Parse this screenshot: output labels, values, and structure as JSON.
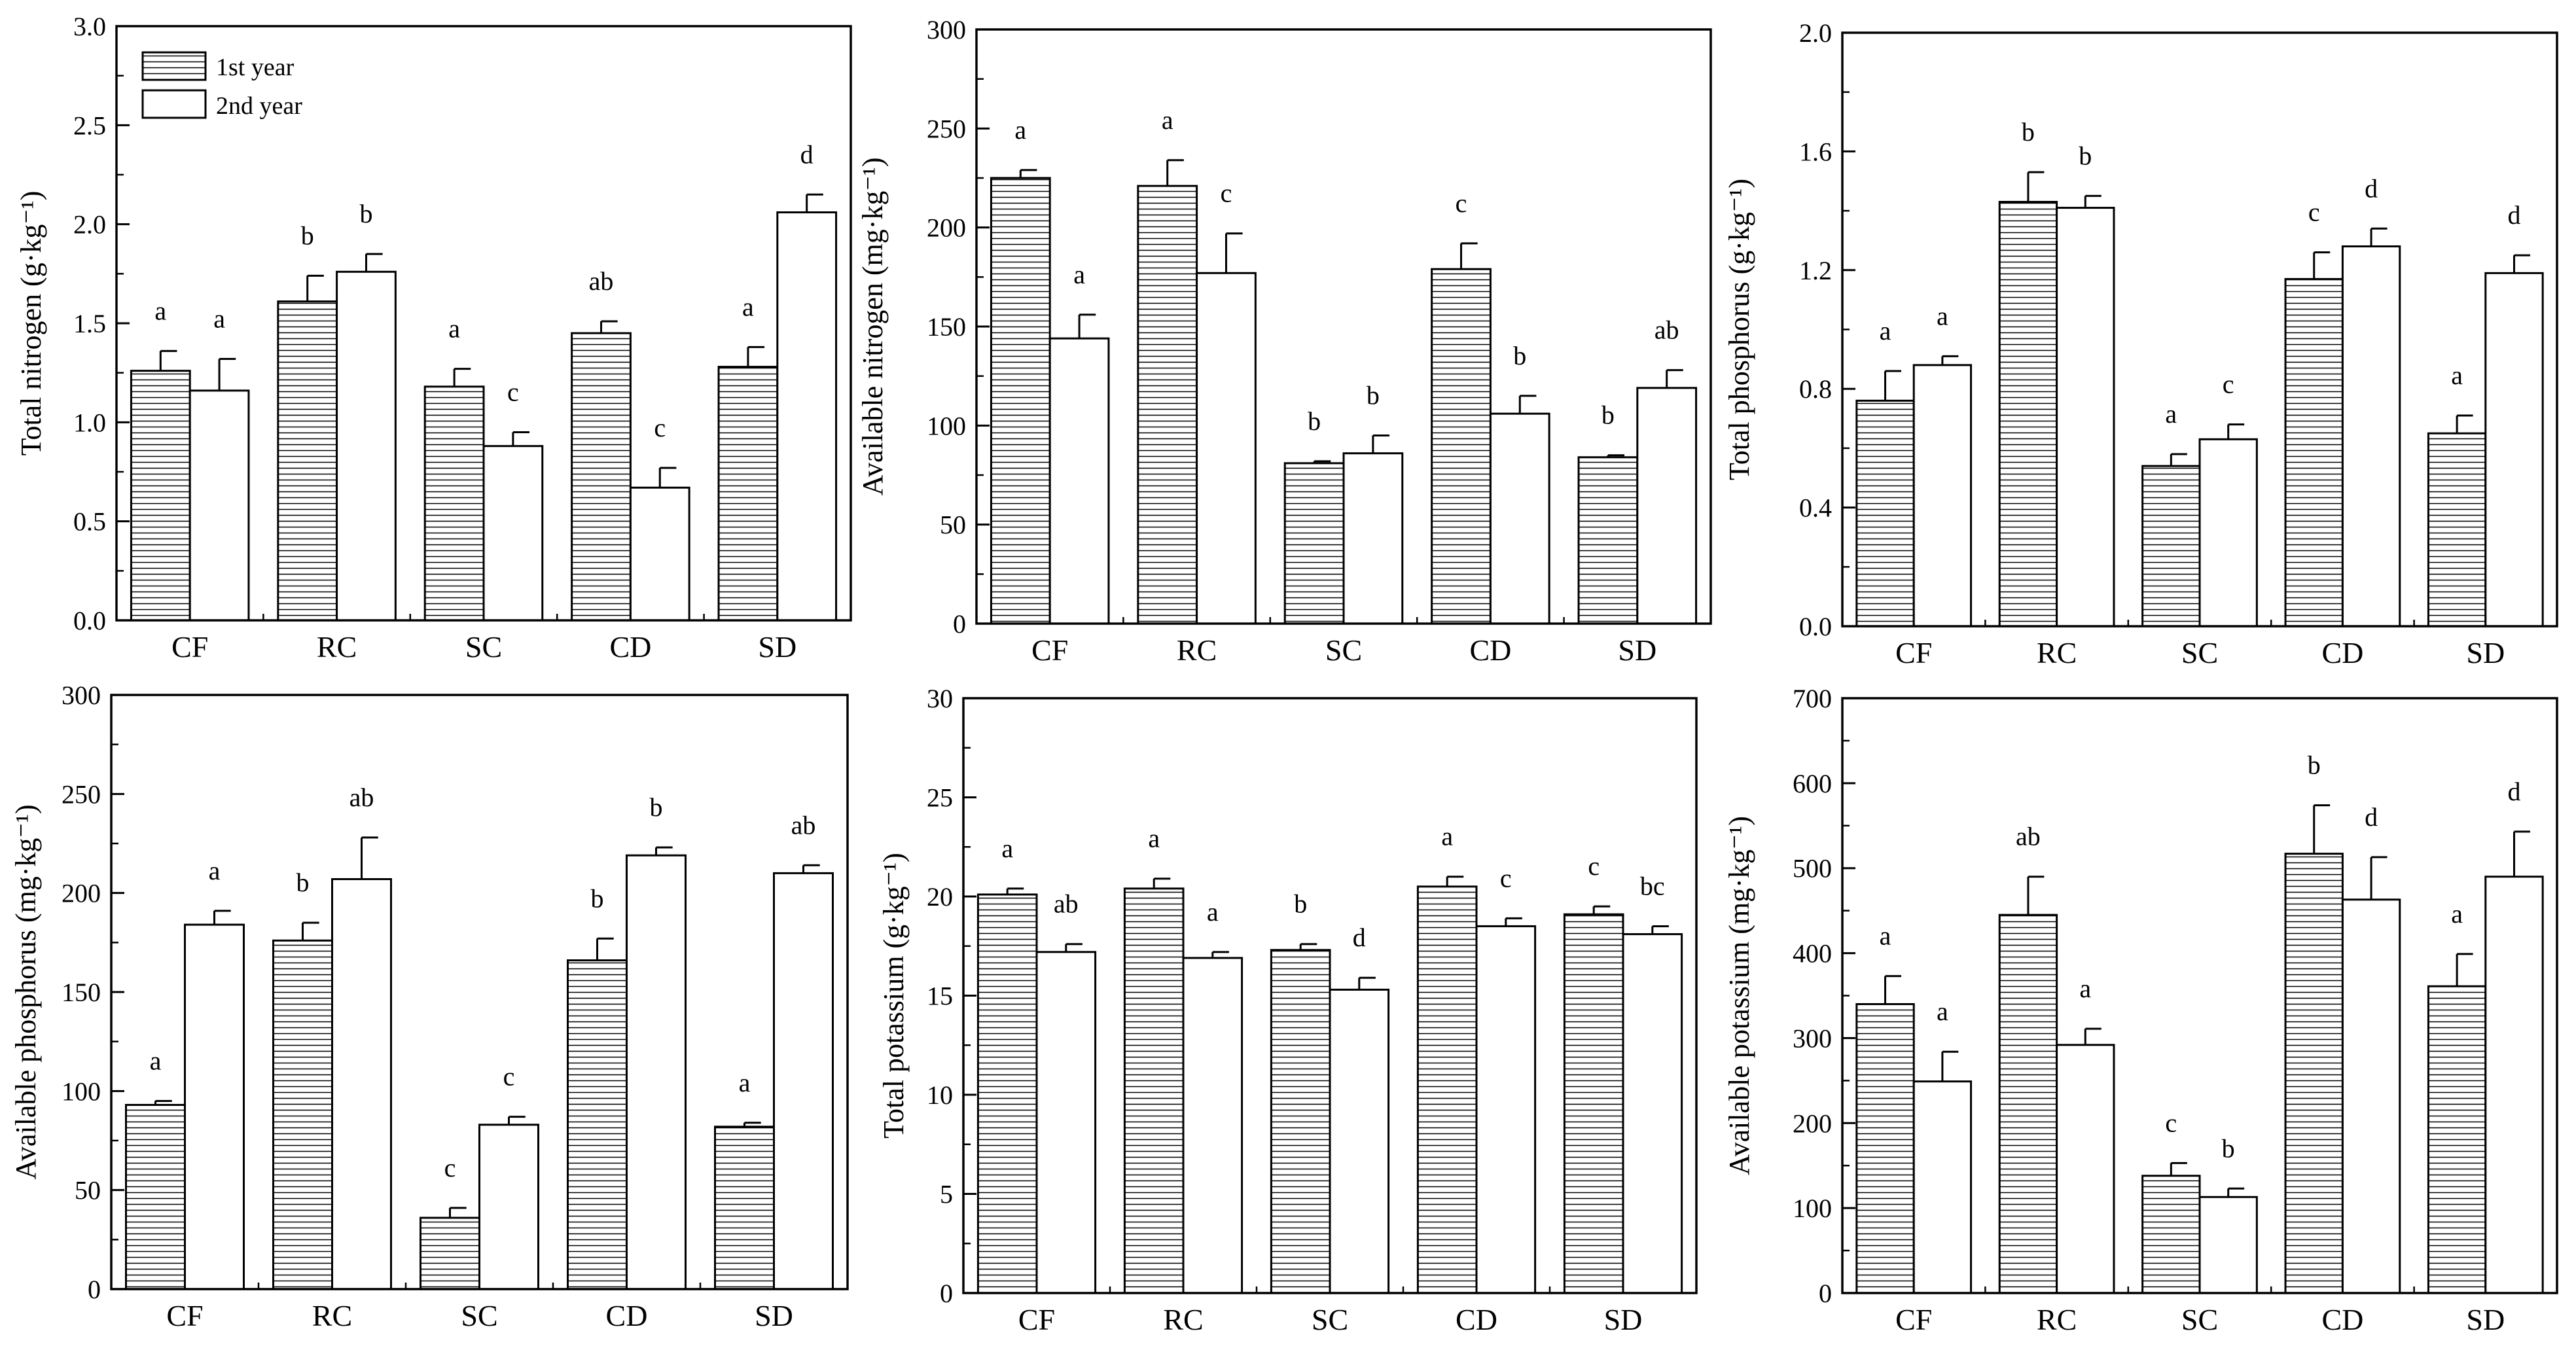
{
  "legend": {
    "series1": "1st year",
    "series2": "2nd year"
  },
  "chart_data": [
    {
      "type": "bar",
      "title": "",
      "ylabel": "Total nitrogen  (g·kg⁻¹)",
      "ylim": [
        0,
        3.0
      ],
      "ytick_labels": [
        "0.0",
        "0.5",
        "1.0",
        "1.5",
        "2.0",
        "2.5",
        "3.0"
      ],
      "categories": [
        "CF",
        "RC",
        "SC",
        "CD",
        "SD"
      ],
      "series": [
        {
          "name": "1st year",
          "values": [
            1.26,
            1.61,
            1.18,
            1.45,
            1.28
          ],
          "errors": [
            0.1,
            0.13,
            0.09,
            0.06,
            0.1
          ],
          "labels": [
            "a",
            "b",
            "a",
            "ab",
            "a"
          ]
        },
        {
          "name": "2nd year",
          "values": [
            1.16,
            1.76,
            0.88,
            0.67,
            2.06
          ],
          "errors": [
            0.16,
            0.09,
            0.07,
            0.1,
            0.09
          ],
          "labels": [
            "a",
            "b",
            "c",
            "c",
            "d"
          ]
        }
      ]
    },
    {
      "type": "bar",
      "title": "",
      "ylabel": "Available nitrogen (mg·kg⁻¹)",
      "ylim": [
        0,
        300
      ],
      "ytick_labels": [
        "0",
        "50",
        "100",
        "150",
        "200",
        "250",
        "300"
      ],
      "categories": [
        "CF",
        "RC",
        "SC",
        "CD",
        "SD"
      ],
      "series": [
        {
          "name": "1st year",
          "values": [
            225,
            221,
            81,
            179,
            84
          ],
          "errors": [
            4,
            13,
            1,
            13,
            1
          ],
          "labels": [
            "a",
            "a",
            "b",
            "c",
            "b"
          ]
        },
        {
          "name": "2nd year",
          "values": [
            144,
            177,
            86,
            106,
            119
          ],
          "errors": [
            12,
            20,
            9,
            9,
            9
          ],
          "labels": [
            "a",
            "c",
            "b",
            "b",
            "ab"
          ]
        }
      ]
    },
    {
      "type": "bar",
      "title": "",
      "ylabel": "Total phosphorus (g·kg⁻¹)",
      "ylim": [
        0,
        2.0
      ],
      "ytick_labels": [
        "0.0",
        "0.4",
        "0.8",
        "1.2",
        "1.6",
        "2.0"
      ],
      "categories": [
        "CF",
        "RC",
        "SC",
        "CD",
        "SD"
      ],
      "series": [
        {
          "name": "1st year",
          "values": [
            0.76,
            1.43,
            0.54,
            1.17,
            0.65
          ],
          "errors": [
            0.1,
            0.1,
            0.04,
            0.09,
            0.06
          ],
          "labels": [
            "a",
            "b",
            "a",
            "c",
            "a"
          ]
        },
        {
          "name": "2nd year",
          "values": [
            0.88,
            1.41,
            0.63,
            1.28,
            1.19
          ],
          "errors": [
            0.03,
            0.04,
            0.05,
            0.06,
            0.06
          ],
          "labels": [
            "a",
            "b",
            "c",
            "d",
            "d"
          ]
        }
      ]
    },
    {
      "type": "bar",
      "title": "",
      "ylabel": "Available phosphorus (mg·kg⁻¹)",
      "ylim": [
        0,
        300
      ],
      "ytick_labels": [
        "0",
        "50",
        "100",
        "150",
        "200",
        "250",
        "300"
      ],
      "categories": [
        "CF",
        "RC",
        "SC",
        "CD",
        "SD"
      ],
      "series": [
        {
          "name": "1st year",
          "values": [
            93,
            176,
            36,
            166,
            82
          ],
          "errors": [
            2,
            9,
            5,
            11,
            2
          ],
          "labels": [
            "a",
            "b",
            "c",
            "b",
            "a"
          ]
        },
        {
          "name": "2nd year",
          "values": [
            184,
            207,
            83,
            219,
            210
          ],
          "errors": [
            7,
            21,
            4,
            4,
            4
          ],
          "labels": [
            "a",
            "ab",
            "c",
            "b",
            "ab"
          ]
        }
      ]
    },
    {
      "type": "bar",
      "title": "",
      "ylabel": "Total potassium  (g·kg⁻¹)",
      "ylim": [
        0,
        30
      ],
      "ytick_labels": [
        "0",
        "5",
        "10",
        "15",
        "20",
        "25",
        "30"
      ],
      "categories": [
        "CF",
        "RC",
        "SC",
        "CD",
        "SD"
      ],
      "series": [
        {
          "name": "1st year",
          "values": [
            20.1,
            20.4,
            17.3,
            20.5,
            19.1
          ],
          "errors": [
            0.3,
            0.5,
            0.3,
            0.5,
            0.4
          ],
          "labels": [
            "a",
            "a",
            "b",
            "a",
            "c"
          ]
        },
        {
          "name": "2nd year",
          "values": [
            17.2,
            16.9,
            15.3,
            18.5,
            18.1
          ],
          "errors": [
            0.4,
            0.3,
            0.6,
            0.4,
            0.4
          ],
          "labels": [
            "ab",
            "a",
            "d",
            "c",
            "bc"
          ]
        }
      ]
    },
    {
      "type": "bar",
      "title": "",
      "ylabel": "Available potassium (mg·kg⁻¹)",
      "ylim": [
        0,
        700
      ],
      "ytick_labels": [
        "0",
        "100",
        "200",
        "300",
        "400",
        "500",
        "600",
        "700"
      ],
      "categories": [
        "CF",
        "RC",
        "SC",
        "CD",
        "SD"
      ],
      "series": [
        {
          "name": "1st year",
          "values": [
            340,
            445,
            138,
            517,
            361
          ],
          "errors": [
            33,
            45,
            15,
            57,
            38
          ],
          "labels": [
            "a",
            "ab",
            "c",
            "b",
            "a"
          ]
        },
        {
          "name": "2nd year",
          "values": [
            249,
            292,
            113,
            463,
            490
          ],
          "errors": [
            35,
            19,
            10,
            50,
            53
          ],
          "labels": [
            "a",
            "a",
            "b",
            "d",
            "d"
          ]
        }
      ]
    }
  ]
}
